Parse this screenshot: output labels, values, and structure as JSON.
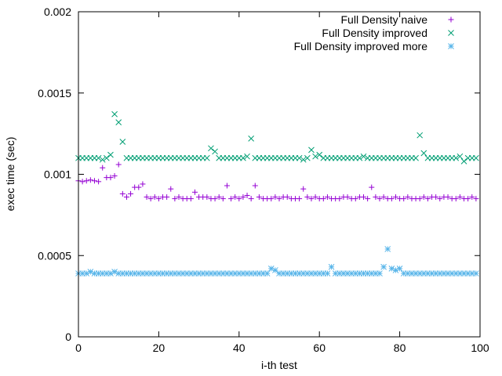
{
  "chart_data": {
    "type": "scatter",
    "xlabel": "i-th test",
    "ylabel": "exec time (sec)",
    "xlim": [
      0,
      100
    ],
    "ylim": [
      0,
      0.002
    ],
    "x_ticks": [
      "0",
      "20",
      "40",
      "60",
      "80",
      "100"
    ],
    "y_ticks": [
      "0",
      "0.0005",
      "0.001",
      "0.0015",
      "0.002"
    ],
    "legend_position": "top-right",
    "series": [
      {
        "name": "Full Density naive",
        "marker": "plus",
        "color": "#9400d3",
        "x": [
          0,
          1,
          2,
          3,
          4,
          5,
          6,
          7,
          8,
          9,
          10,
          11,
          12,
          13,
          14,
          15,
          16,
          17,
          18,
          19,
          20,
          21,
          22,
          23,
          24,
          25,
          26,
          27,
          28,
          29,
          30,
          31,
          32,
          33,
          34,
          35,
          36,
          37,
          38,
          39,
          40,
          41,
          42,
          43,
          44,
          45,
          46,
          47,
          48,
          49,
          50,
          51,
          52,
          53,
          54,
          55,
          56,
          57,
          58,
          59,
          60,
          61,
          62,
          63,
          64,
          65,
          66,
          67,
          68,
          69,
          70,
          71,
          72,
          73,
          74,
          75,
          76,
          77,
          78,
          79,
          80,
          81,
          82,
          83,
          84,
          85,
          86,
          87,
          88,
          89,
          90,
          91,
          92,
          93,
          94,
          95,
          96,
          97,
          98,
          99
        ],
        "y": [
          0.00096,
          0.000955,
          0.00096,
          0.000965,
          0.00096,
          0.000955,
          0.00104,
          0.00098,
          0.00098,
          0.00099,
          0.00106,
          0.00088,
          0.00086,
          0.00088,
          0.00092,
          0.00092,
          0.00094,
          0.00086,
          0.00085,
          0.00086,
          0.00085,
          0.00086,
          0.00086,
          0.00091,
          0.00085,
          0.00086,
          0.00085,
          0.00085,
          0.00085,
          0.00089,
          0.00086,
          0.00086,
          0.00086,
          0.00085,
          0.00085,
          0.00086,
          0.00085,
          0.00093,
          0.00085,
          0.00086,
          0.00085,
          0.00086,
          0.00087,
          0.00085,
          0.00093,
          0.00086,
          0.00085,
          0.00085,
          0.00085,
          0.00086,
          0.00085,
          0.00086,
          0.00086,
          0.00085,
          0.00085,
          0.00085,
          0.00091,
          0.00086,
          0.00085,
          0.00086,
          0.00085,
          0.00085,
          0.00086,
          0.00085,
          0.00085,
          0.00085,
          0.00086,
          0.00086,
          0.00085,
          0.00085,
          0.00086,
          0.00086,
          0.00085,
          0.00092,
          0.00086,
          0.00085,
          0.00086,
          0.00085,
          0.00085,
          0.00086,
          0.00085,
          0.00085,
          0.00086,
          0.00085,
          0.00085,
          0.00085,
          0.00086,
          0.00085,
          0.00086,
          0.00086,
          0.00085,
          0.00086,
          0.00086,
          0.00085,
          0.00085,
          0.00086,
          0.00085,
          0.00085,
          0.00086,
          0.00085
        ]
      },
      {
        "name": "Full Density improved",
        "marker": "cross",
        "color": "#009e73",
        "x": [
          0,
          1,
          2,
          3,
          4,
          5,
          6,
          7,
          8,
          9,
          10,
          11,
          12,
          13,
          14,
          15,
          16,
          17,
          18,
          19,
          20,
          21,
          22,
          23,
          24,
          25,
          26,
          27,
          28,
          29,
          30,
          31,
          32,
          33,
          34,
          35,
          36,
          37,
          38,
          39,
          40,
          41,
          42,
          43,
          44,
          45,
          46,
          47,
          48,
          49,
          50,
          51,
          52,
          53,
          54,
          55,
          56,
          57,
          58,
          59,
          60,
          61,
          62,
          63,
          64,
          65,
          66,
          67,
          68,
          69,
          70,
          71,
          72,
          73,
          74,
          75,
          76,
          77,
          78,
          79,
          80,
          81,
          82,
          83,
          84,
          85,
          86,
          87,
          88,
          89,
          90,
          91,
          92,
          93,
          94,
          95,
          96,
          97,
          98,
          99
        ],
        "y": [
          0.0011,
          0.0011,
          0.0011,
          0.0011,
          0.0011,
          0.0011,
          0.00109,
          0.0011,
          0.00112,
          0.00137,
          0.00132,
          0.0012,
          0.0011,
          0.0011,
          0.0011,
          0.0011,
          0.0011,
          0.0011,
          0.0011,
          0.0011,
          0.0011,
          0.0011,
          0.0011,
          0.0011,
          0.0011,
          0.0011,
          0.0011,
          0.0011,
          0.0011,
          0.0011,
          0.0011,
          0.0011,
          0.0011,
          0.00116,
          0.00114,
          0.0011,
          0.0011,
          0.0011,
          0.0011,
          0.0011,
          0.0011,
          0.0011,
          0.00111,
          0.00122,
          0.0011,
          0.0011,
          0.0011,
          0.0011,
          0.0011,
          0.0011,
          0.0011,
          0.0011,
          0.0011,
          0.0011,
          0.0011,
          0.0011,
          0.00109,
          0.0011,
          0.00115,
          0.00111,
          0.00112,
          0.0011,
          0.0011,
          0.0011,
          0.0011,
          0.0011,
          0.0011,
          0.0011,
          0.0011,
          0.0011,
          0.0011,
          0.00111,
          0.0011,
          0.0011,
          0.0011,
          0.0011,
          0.0011,
          0.0011,
          0.0011,
          0.0011,
          0.0011,
          0.0011,
          0.0011,
          0.0011,
          0.0011,
          0.00124,
          0.00113,
          0.0011,
          0.0011,
          0.0011,
          0.0011,
          0.0011,
          0.0011,
          0.0011,
          0.0011,
          0.00111,
          0.00108,
          0.0011,
          0.0011,
          0.0011
        ]
      },
      {
        "name": "Full Density improved more",
        "marker": "star",
        "color": "#56b4e9",
        "x": [
          0,
          1,
          2,
          3,
          4,
          5,
          6,
          7,
          8,
          9,
          10,
          11,
          12,
          13,
          14,
          15,
          16,
          17,
          18,
          19,
          20,
          21,
          22,
          23,
          24,
          25,
          26,
          27,
          28,
          29,
          30,
          31,
          32,
          33,
          34,
          35,
          36,
          37,
          38,
          39,
          40,
          41,
          42,
          43,
          44,
          45,
          46,
          47,
          48,
          49,
          50,
          51,
          52,
          53,
          54,
          55,
          56,
          57,
          58,
          59,
          60,
          61,
          62,
          63,
          64,
          65,
          66,
          67,
          68,
          69,
          70,
          71,
          72,
          73,
          74,
          75,
          76,
          77,
          78,
          79,
          80,
          81,
          82,
          83,
          84,
          85,
          86,
          87,
          88,
          89,
          90,
          91,
          92,
          93,
          94,
          95,
          96,
          97,
          98,
          99
        ],
        "y": [
          0.00039,
          0.00039,
          0.00039,
          0.0004,
          0.00039,
          0.00039,
          0.00039,
          0.00039,
          0.00039,
          0.0004,
          0.00039,
          0.00039,
          0.00039,
          0.00039,
          0.00039,
          0.00039,
          0.00039,
          0.00039,
          0.00039,
          0.00039,
          0.00039,
          0.00039,
          0.00039,
          0.00039,
          0.00039,
          0.00039,
          0.00039,
          0.00039,
          0.00039,
          0.00039,
          0.00039,
          0.00039,
          0.00039,
          0.00039,
          0.00039,
          0.00039,
          0.00039,
          0.00039,
          0.00039,
          0.00039,
          0.00039,
          0.00039,
          0.00039,
          0.00039,
          0.00039,
          0.00039,
          0.00039,
          0.00039,
          0.00042,
          0.00041,
          0.00039,
          0.00039,
          0.00039,
          0.00039,
          0.00039,
          0.00039,
          0.00039,
          0.00039,
          0.00039,
          0.00039,
          0.00039,
          0.00039,
          0.00039,
          0.00043,
          0.00039,
          0.00039,
          0.00039,
          0.00039,
          0.00039,
          0.00039,
          0.00039,
          0.00039,
          0.00039,
          0.00039,
          0.00039,
          0.00039,
          0.00043,
          0.00054,
          0.00042,
          0.00041,
          0.00042,
          0.00039,
          0.00039,
          0.00039,
          0.00039,
          0.00039,
          0.00039,
          0.00039,
          0.00039,
          0.00039,
          0.00039,
          0.00039,
          0.00039,
          0.00039,
          0.00039,
          0.00039,
          0.00039,
          0.00039,
          0.00039,
          0.00039
        ]
      }
    ]
  }
}
